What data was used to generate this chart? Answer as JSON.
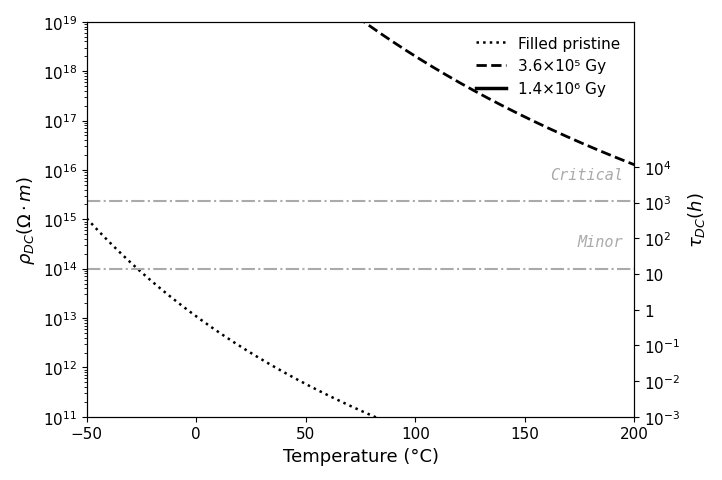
{
  "xlabel": "Temperature (°C)",
  "x_min": -50,
  "x_max": 200,
  "y_left_min": 100000000000.0,
  "y_left_max": 1e+19,
  "critical_rho": 2300000000000000.0,
  "minor_rho": 100000000000000.0,
  "critical_label": "Critical",
  "minor_label": "Minor",
  "curve_pristine": {
    "label": "Filled pristine",
    "linestyle": ":",
    "color": "#000000",
    "lw": 1.8,
    "Ea": 0.48,
    "rho0": 15000.0
  },
  "curve_36e5": {
    "label": "3.6×10⁵ Gy",
    "linestyle": "--",
    "color": "#000000",
    "lw": 2.0,
    "Ea": 0.77,
    "rho0": 80000000.0
  },
  "curve_14e6": {
    "label": "1.4×10⁶ Gy",
    "linestyle": "-",
    "color": "#000000",
    "lw": 2.5,
    "Ea": 0.88,
    "rho0": 5000000000.0
  },
  "hline_color": "#aaaaaa",
  "hline_style": "-.",
  "hline_lw": 1.5,
  "legend_fontsize": 11,
  "axis_label_fontsize": 13,
  "tick_fontsize": 11,
  "background_color": "#ffffff",
  "scale_factor": 86400000000.0,
  "right_ticks": [
    0.001,
    0.01,
    0.1,
    1,
    10,
    100,
    1000,
    10000
  ],
  "right_tick_labels": [
    "10$^{-3}$",
    "10$^{-2}$",
    "10$^{-1}$",
    "1",
    "10",
    "10$^{2}$",
    "10$^{3}$",
    "10$^{4}$"
  ]
}
